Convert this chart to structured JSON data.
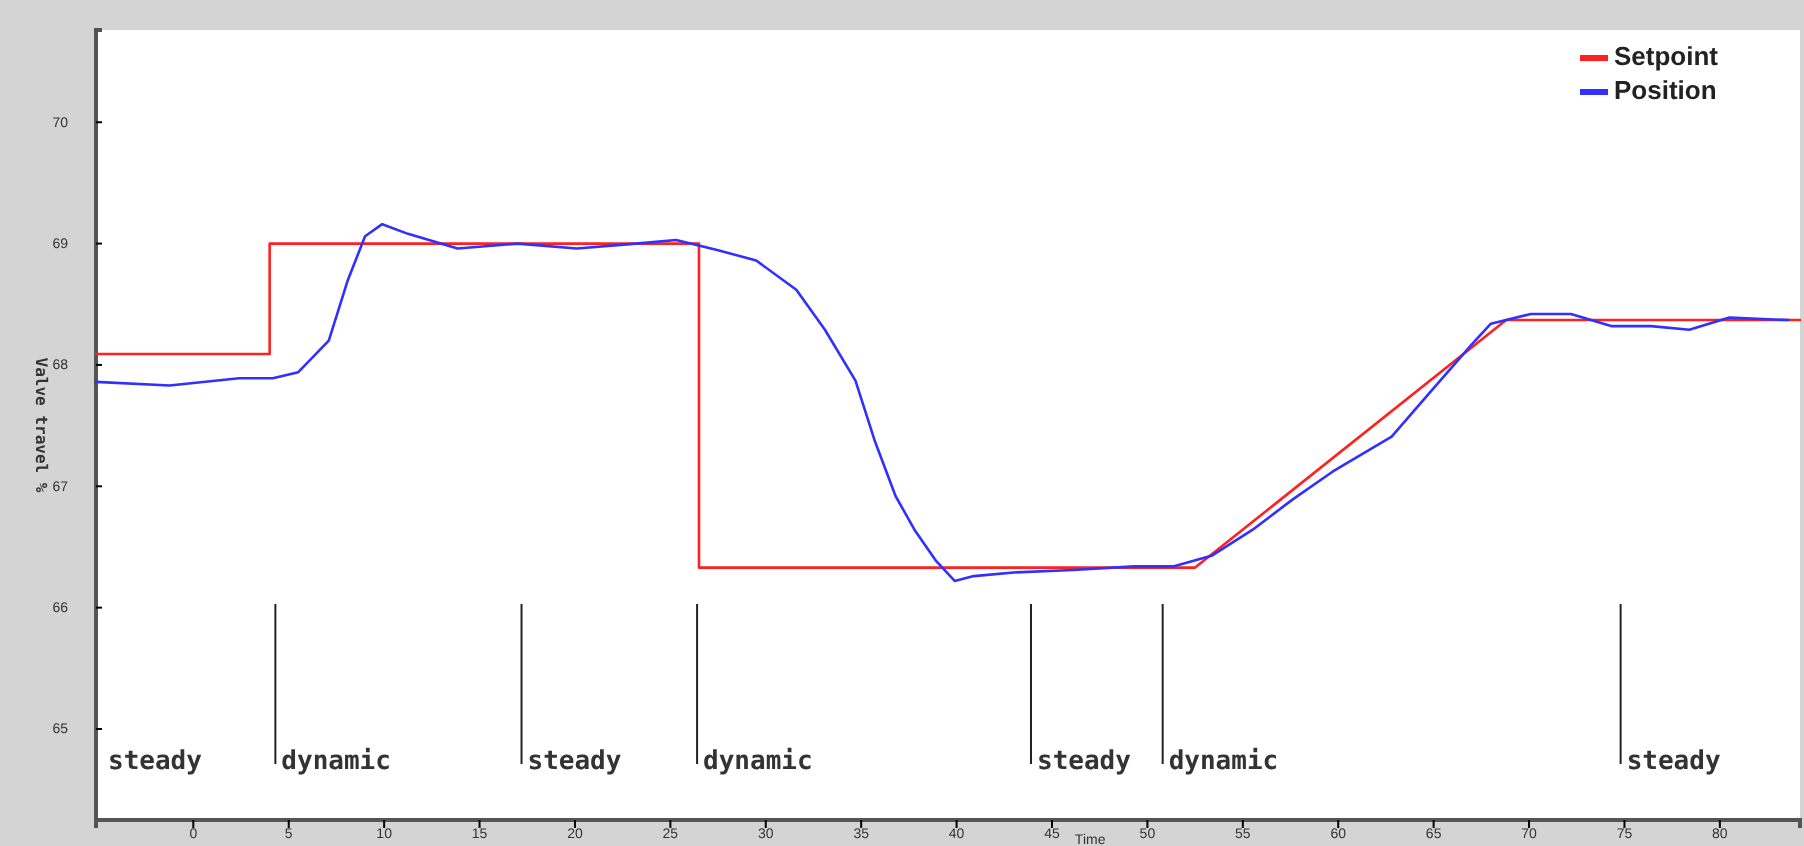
{
  "chart_data": {
    "type": "line",
    "xlabel": "Time",
    "ylabel": "Valve travel %",
    "xlim": [
      -5.1,
      84.2
    ],
    "ylim": [
      64.25,
      70.76
    ],
    "xticks": [
      0,
      5,
      10,
      15,
      20,
      25,
      30,
      35,
      40,
      45,
      50,
      55,
      60,
      65,
      70,
      75,
      80
    ],
    "yticks": [
      65,
      66,
      67,
      68,
      69,
      70
    ],
    "legend": "top right",
    "grid": false,
    "series": [
      {
        "name": "Setpoint",
        "color": "#ff2020",
        "x": [
          -5.1,
          4,
          4,
          26.5,
          26.5,
          52.5,
          68.8,
          84.2
        ],
        "values": [
          68.09,
          68.09,
          69,
          69,
          66.33,
          66.33,
          68.37,
          68.37
        ]
      },
      {
        "name": "Position",
        "color": "#3030ff",
        "x": [
          -5.1,
          -1.25,
          2.4,
          4.17,
          5.5,
          7.1,
          8.1,
          9.0,
          9.9,
          11.25,
          13.85,
          17.0,
          20.1,
          23.2,
          25.3,
          27.4,
          29.5,
          31.6,
          33.1,
          34.7,
          35.7,
          36.8,
          37.8,
          38.9,
          39.9,
          40.9,
          43.0,
          46.1,
          49.3,
          51.4,
          53.4,
          55.5,
          57.6,
          59.7,
          62.8,
          64.9,
          67.0,
          68.0,
          70.1,
          72.2,
          74.3,
          76.4,
          78.4,
          80.5,
          83.6
        ],
        "values": [
          67.86,
          67.83,
          67.89,
          67.89,
          67.94,
          68.2,
          68.7,
          69.06,
          69.16,
          69.08,
          68.96,
          69.0,
          68.96,
          69.0,
          69.03,
          68.95,
          68.86,
          68.62,
          68.29,
          67.87,
          67.38,
          66.92,
          66.64,
          66.39,
          66.22,
          66.26,
          66.29,
          66.31,
          66.34,
          66.34,
          66.43,
          66.64,
          66.89,
          67.12,
          67.41,
          67.79,
          68.17,
          68.34,
          68.42,
          68.42,
          68.32,
          68.32,
          68.29,
          68.39,
          68.37
        ]
      }
    ],
    "annotations": [
      "steady"
    ],
    "ref_lines": [
      {
        "axis": "x",
        "value": 4.3,
        "label": "dynamic"
      },
      {
        "axis": "x",
        "value": 17.2,
        "label": "steady"
      },
      {
        "axis": "x",
        "value": 26.4,
        "label": "dynamic"
      },
      {
        "axis": "x",
        "value": 43.9,
        "label": "steady"
      },
      {
        "axis": "x",
        "value": 50.8,
        "label": "dynamic"
      },
      {
        "axis": "x",
        "value": 74.8,
        "label": "steady"
      }
    ]
  }
}
